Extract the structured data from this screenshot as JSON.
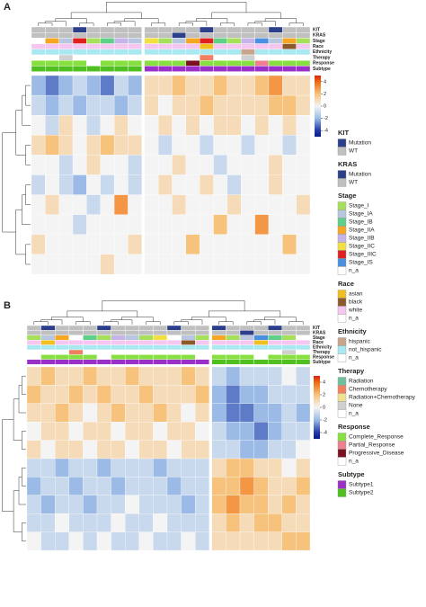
{
  "figure": {
    "panels": [
      {
        "label": "A",
        "annotation_tracks": [
          "KIT",
          "KRAS",
          "Stage",
          "Race",
          "Ethnicity",
          "Therapy",
          "Response",
          "Subtype"
        ],
        "scale_lim": [
          -5,
          5
        ],
        "scale_ticks": [
          4,
          2,
          0,
          -2,
          -4
        ],
        "annotations": [
          [
            1,
            1,
            1,
            0,
            1,
            1,
            1,
            1,
            1,
            1,
            1,
            1,
            0,
            1,
            1,
            1,
            1,
            0,
            1,
            1
          ],
          [
            1,
            1,
            1,
            1,
            1,
            1,
            1,
            1,
            1,
            1,
            0,
            1,
            1,
            1,
            1,
            1,
            1,
            1,
            1,
            1
          ],
          [
            8,
            3,
            1,
            6,
            0,
            2,
            4,
            1,
            5,
            0,
            1,
            3,
            6,
            2,
            0,
            4,
            7,
            1,
            3,
            0
          ],
          [
            2,
            2,
            2,
            2,
            2,
            2,
            2,
            2,
            2,
            2,
            2,
            2,
            0,
            2,
            2,
            2,
            2,
            2,
            1,
            2
          ],
          [
            1,
            1,
            1,
            1,
            1,
            1,
            1,
            1,
            1,
            1,
            1,
            1,
            1,
            1,
            1,
            0,
            1,
            1,
            1,
            1
          ],
          [
            4,
            4,
            3,
            4,
            4,
            4,
            4,
            4,
            4,
            4,
            4,
            4,
            1,
            4,
            4,
            3,
            4,
            4,
            4,
            4
          ],
          [
            0,
            0,
            0,
            0,
            3,
            0,
            0,
            0,
            0,
            0,
            0,
            2,
            0,
            0,
            0,
            0,
            1,
            0,
            0,
            0
          ],
          [
            1,
            1,
            1,
            1,
            1,
            1,
            1,
            1,
            0,
            0,
            0,
            0,
            0,
            0,
            0,
            0,
            0,
            0,
            0,
            0
          ]
        ],
        "matrix": [
          [
            -2,
            -3,
            -2,
            -1,
            -2,
            -3,
            -1,
            -2,
            1,
            1,
            2,
            1,
            1,
            2,
            1,
            1,
            2,
            3,
            1,
            1
          ],
          [
            -1,
            -2,
            -1,
            -2,
            -1,
            -1,
            -2,
            -1,
            1,
            0,
            1,
            1,
            2,
            1,
            1,
            1,
            1,
            2,
            2,
            1
          ],
          [
            0,
            -1,
            1,
            0,
            -1,
            0,
            1,
            0,
            0,
            1,
            0,
            1,
            0,
            1,
            1,
            0,
            1,
            0,
            1,
            0
          ],
          [
            1,
            2,
            1,
            0,
            1,
            2,
            1,
            1,
            0,
            -1,
            0,
            0,
            -1,
            0,
            0,
            -1,
            0,
            0,
            -1,
            0
          ],
          [
            0,
            0,
            -1,
            0,
            1,
            0,
            0,
            -1,
            0,
            0,
            1,
            0,
            0,
            -1,
            0,
            0,
            0,
            1,
            0,
            0
          ],
          [
            -1,
            0,
            -1,
            -2,
            0,
            -1,
            0,
            -1,
            0,
            1,
            0,
            0,
            1,
            0,
            -1,
            0,
            0,
            1,
            0,
            0
          ],
          [
            0,
            1,
            0,
            0,
            -1,
            0,
            3,
            0,
            0,
            0,
            1,
            0,
            0,
            0,
            1,
            0,
            0,
            0,
            0,
            1
          ],
          [
            0,
            0,
            0,
            -1,
            0,
            0,
            0,
            0,
            0,
            0,
            0,
            0,
            0,
            2,
            0,
            0,
            3,
            0,
            0,
            0
          ],
          [
            1,
            0,
            0,
            0,
            0,
            0,
            0,
            1,
            0,
            0,
            0,
            2,
            0,
            0,
            0,
            0,
            0,
            0,
            2,
            0
          ],
          [
            0,
            0,
            0,
            0,
            0,
            1,
            0,
            0,
            0,
            0,
            0,
            0,
            0,
            0,
            0,
            0,
            0,
            0,
            0,
            0
          ]
        ]
      },
      {
        "label": "B",
        "annotation_tracks": [
          "KIT",
          "KRAS",
          "Stage",
          "Race",
          "Ethnicity",
          "Therapy",
          "Response",
          "Subtype"
        ],
        "scale_lim": [
          -5,
          5
        ],
        "scale_ticks": [
          4,
          2,
          0,
          -2,
          -4
        ],
        "annotations": [
          [
            1,
            0,
            1,
            1,
            1,
            0,
            1,
            1,
            1,
            1,
            0,
            1,
            1,
            0,
            1,
            1,
            1,
            0,
            1,
            1
          ],
          [
            1,
            1,
            1,
            1,
            1,
            1,
            1,
            1,
            1,
            1,
            1,
            1,
            1,
            1,
            1,
            0,
            1,
            1,
            1,
            1
          ],
          [
            0,
            1,
            3,
            8,
            2,
            0,
            4,
            1,
            0,
            5,
            8,
            1,
            0,
            3,
            0,
            1,
            7,
            2,
            0,
            8
          ],
          [
            2,
            0,
            2,
            2,
            2,
            2,
            2,
            2,
            2,
            2,
            2,
            1,
            2,
            2,
            2,
            2,
            0,
            2,
            2,
            2
          ],
          [
            1,
            1,
            1,
            1,
            1,
            1,
            1,
            1,
            1,
            1,
            1,
            1,
            1,
            1,
            1,
            1,
            1,
            1,
            1,
            1
          ],
          [
            4,
            4,
            4,
            1,
            4,
            4,
            4,
            4,
            4,
            4,
            4,
            4,
            4,
            4,
            4,
            4,
            4,
            4,
            3,
            4
          ],
          [
            3,
            0,
            0,
            0,
            0,
            3,
            0,
            0,
            0,
            0,
            0,
            0,
            3,
            0,
            0,
            0,
            3,
            0,
            0,
            0
          ],
          [
            0,
            0,
            0,
            0,
            0,
            0,
            0,
            0,
            0,
            0,
            0,
            0,
            0,
            1,
            1,
            1,
            1,
            1,
            1,
            1
          ]
        ],
        "matrix": [
          [
            1,
            2,
            1,
            1,
            2,
            1,
            1,
            2,
            1,
            1,
            1,
            2,
            1,
            -1,
            -2,
            -1,
            -1,
            -1,
            0,
            -1
          ],
          [
            2,
            1,
            1,
            2,
            1,
            2,
            1,
            1,
            2,
            1,
            1,
            1,
            2,
            -2,
            -3,
            -2,
            -2,
            -1,
            -1,
            -1
          ],
          [
            1,
            1,
            2,
            1,
            0,
            1,
            2,
            1,
            1,
            2,
            1,
            0,
            1,
            -2,
            -3,
            -3,
            -2,
            -2,
            -1,
            -2
          ],
          [
            0,
            1,
            1,
            0,
            1,
            1,
            0,
            1,
            1,
            0,
            1,
            1,
            0,
            -1,
            -2,
            -2,
            -3,
            -2,
            -1,
            -1
          ],
          [
            1,
            0,
            1,
            1,
            0,
            1,
            1,
            0,
            1,
            1,
            0,
            1,
            1,
            -1,
            -1,
            -2,
            -2,
            -1,
            -1,
            0
          ],
          [
            -1,
            -1,
            -2,
            -1,
            -1,
            -2,
            -1,
            -1,
            -1,
            -2,
            -1,
            -1,
            -1,
            1,
            2,
            2,
            1,
            1,
            0,
            1
          ],
          [
            -2,
            -1,
            -1,
            -2,
            -1,
            -1,
            -2,
            -1,
            -1,
            -1,
            -2,
            -1,
            -1,
            2,
            2,
            3,
            2,
            1,
            1,
            2
          ],
          [
            -1,
            -2,
            -1,
            -1,
            -2,
            -1,
            -1,
            0,
            -1,
            -1,
            -1,
            -2,
            -1,
            2,
            3,
            2,
            2,
            1,
            2,
            1
          ],
          [
            -1,
            -1,
            0,
            -1,
            -1,
            -1,
            0,
            -1,
            -1,
            0,
            -1,
            -1,
            -1,
            1,
            2,
            1,
            2,
            2,
            1,
            1
          ],
          [
            0,
            -1,
            -1,
            0,
            -1,
            0,
            -1,
            -1,
            0,
            -1,
            -1,
            0,
            -1,
            1,
            1,
            1,
            1,
            1,
            2,
            2
          ]
        ]
      }
    ],
    "legends": [
      {
        "title": "KIT",
        "items": [
          {
            "label": "Mutation",
            "color": "#2b3f8a"
          },
          {
            "label": "WT",
            "color": "#c0c0c0"
          }
        ]
      },
      {
        "title": "KRAS",
        "items": [
          {
            "label": "Mutation",
            "color": "#2b3f8a"
          },
          {
            "label": "WT",
            "color": "#c0c0c0"
          }
        ]
      },
      {
        "title": "Stage",
        "items": [
          {
            "label": "Stage_I",
            "color": "#a6e05a"
          },
          {
            "label": "Stage_IA",
            "color": "#b8c6e0"
          },
          {
            "label": "Stage_IB",
            "color": "#5fd08a"
          },
          {
            "label": "Stage_IIA",
            "color": "#f5a623"
          },
          {
            "label": "Stage_IIB",
            "color": "#c6b3e8"
          },
          {
            "label": "Stage_IIC",
            "color": "#f2e040"
          },
          {
            "label": "Stage_IIIC",
            "color": "#e0201f"
          },
          {
            "label": "Stage_IS",
            "color": "#4a8fe0"
          },
          {
            "label": "n_a",
            "color": "#ffffff"
          }
        ]
      },
      {
        "title": "Race",
        "items": [
          {
            "label": "asian",
            "color": "#f0c020"
          },
          {
            "label": "black",
            "color": "#8b5a2b"
          },
          {
            "label": "white",
            "color": "#f5c6f0"
          },
          {
            "label": "n_a",
            "color": "#ffffff"
          }
        ]
      },
      {
        "title": "Ethnicity",
        "items": [
          {
            "label": "hispanic",
            "color": "#c8a48a"
          },
          {
            "label": "not_hispanic",
            "color": "#a8e8f0"
          },
          {
            "label": "n_a",
            "color": "#ffffff"
          }
        ]
      },
      {
        "title": "Therapy",
        "items": [
          {
            "label": "Radiation",
            "color": "#70c0a0"
          },
          {
            "label": "Chemotherapy",
            "color": "#f08060"
          },
          {
            "label": "Radiation+Chemotherapy",
            "color": "#f0e090"
          },
          {
            "label": "None",
            "color": "#d0d0d0"
          },
          {
            "label": "n_a",
            "color": "#ffffff"
          }
        ]
      },
      {
        "title": "Response",
        "items": [
          {
            "label": "Complete_Response",
            "color": "#88e040"
          },
          {
            "label": "Partial_Response",
            "color": "#f08090"
          },
          {
            "label": "Progressive_Disease",
            "color": "#7a1020"
          },
          {
            "label": "n_a",
            "color": "#ffffff"
          }
        ]
      },
      {
        "title": "Subtype",
        "items": [
          {
            "label": "Subtype1",
            "color": "#9b30c8"
          },
          {
            "label": "Subtype2",
            "color": "#50c020"
          }
        ]
      }
    ]
  }
}
